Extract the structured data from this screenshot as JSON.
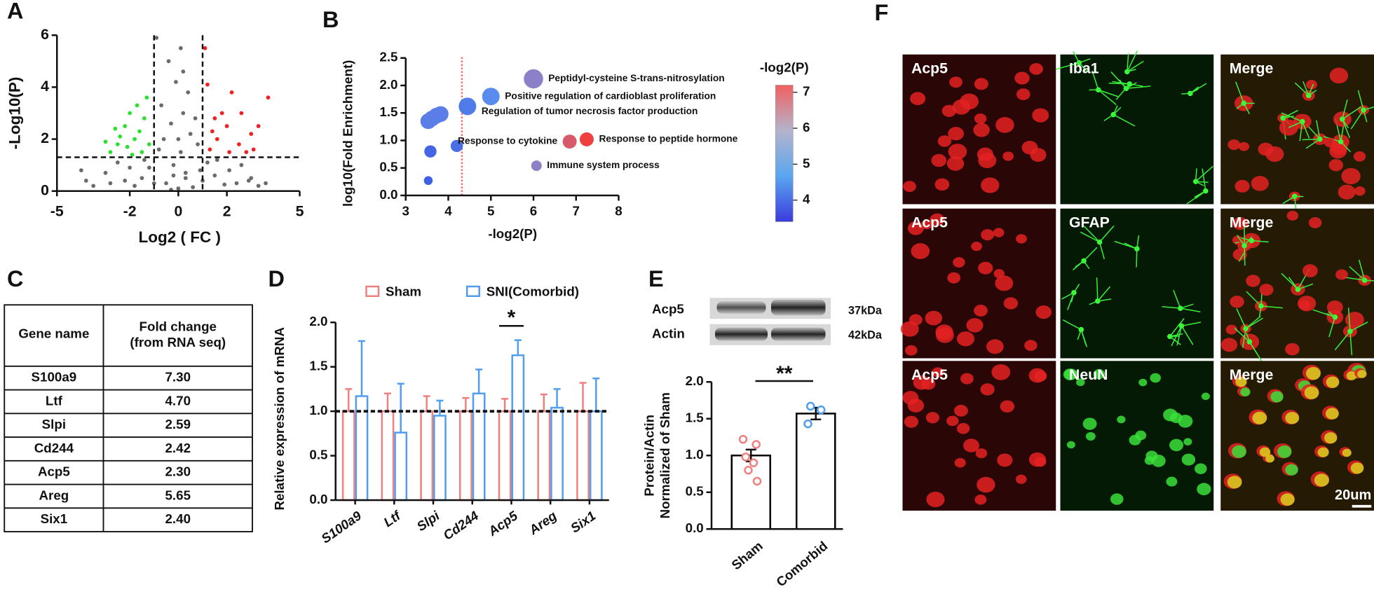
{
  "panel_labels": [
    "A",
    "B",
    "C",
    "D",
    "E",
    "F"
  ],
  "chart_data": [
    {
      "type": "scatter",
      "xlabel": "Log2 ( FC )",
      "ylabel": "-Log10(P)",
      "xlim": [
        -5,
        5
      ],
      "ylim": [
        0,
        6
      ],
      "xticks": [
        -5,
        -2,
        0,
        2,
        5
      ],
      "yticks": [
        0,
        2,
        4,
        6
      ],
      "thresholds": {
        "x": [
          -1,
          1
        ],
        "y": 1.3
      },
      "series": [
        {
          "color": "#6b6b6b",
          "x": [
            -0.5,
            0.3,
            -0.2,
            0.1,
            -0.6,
            0.5,
            0.2,
            -0.1,
            0.2,
            0.1,
            -0.9,
            -0.4,
            0.7,
            -0.8,
            0.9,
            -1.5,
            1.5,
            -2.2,
            2.4,
            -3.0,
            3.0,
            -3.5,
            3.3,
            -4.0,
            -2.5,
            2.6,
            -1.2,
            1.2,
            0.0,
            -0.3,
            0.6,
            -1.8,
            1.9,
            -0.7,
            0.4,
            -0.3,
            0.8,
            -1.0,
            1.0,
            0.0,
            -2.8,
            2.9,
            -3.8,
            3.6,
            -1.4,
            1.6,
            -0.2,
            0.3,
            -2.0,
            2.1
          ],
          "y": [
            0.3,
            0.5,
            1.0,
            1.5,
            2.0,
            2.2,
            3.0,
            4.2,
            4.6,
            5.5,
            5.9,
            5.0,
            2.8,
            1.6,
            0.8,
            0.5,
            0.6,
            0.4,
            0.3,
            0.7,
            0.5,
            0.2,
            0.2,
            0.8,
            1.1,
            1.0,
            0.9,
            1.1,
            0.1,
            0.05,
            0.15,
            0.2,
            0.25,
            3.3,
            3.8,
            2.6,
            1.8,
            0.3,
            0.4,
            2.0,
            0.3,
            0.4,
            0.4,
            0.3,
            1.2,
            1.2,
            0.6,
            0.7,
            0.9,
            0.8
          ]
        },
        {
          "color": "#2ee02e",
          "x": [
            -1.5,
            -1.8,
            -2.2,
            -2.5,
            -2.0,
            -1.3,
            -1.6,
            -2.8,
            -3.0,
            -1.2,
            -1.9,
            -2.4,
            -1.4,
            -1.7,
            -2.1,
            -2.6
          ],
          "y": [
            1.5,
            2.0,
            2.5,
            1.8,
            3.0,
            3.6,
            2.3,
            1.5,
            1.9,
            1.8,
            1.4,
            2.1,
            2.8,
            3.3,
            1.7,
            2.4
          ]
        },
        {
          "color": "#ee2222",
          "x": [
            1.3,
            1.6,
            2.0,
            2.5,
            1.8,
            1.2,
            2.2,
            3.0,
            3.7,
            3.3,
            2.8,
            1.5,
            2.1,
            1.1,
            2.6,
            1.4,
            3.1
          ],
          "y": [
            1.6,
            2.0,
            2.5,
            1.8,
            3.0,
            4.1,
            3.8,
            2.2,
            3.6,
            2.5,
            1.5,
            2.8,
            1.5,
            5.5,
            3.0,
            2.3,
            1.6
          ]
        }
      ]
    },
    {
      "type": "bubble",
      "xlabel": "-log2(P)",
      "ylabel": "log10(Fold Enrichment)",
      "xlim": [
        3,
        8
      ],
      "ylim": [
        0,
        2.5
      ],
      "xticks": [
        3,
        4,
        5,
        6,
        7,
        8
      ],
      "yticks": [
        {
          "value": 0,
          "label": "0.0"
        },
        0.5,
        {
          "value": 1,
          "label": "1.0"
        },
        1.5,
        {
          "value": 2,
          "label": "2.0"
        },
        2.5
      ],
      "threshold_x": 4.32,
      "x": [
        6.0,
        5.0,
        4.45,
        4.2,
        6.85,
        7.25,
        6.07,
        3.53,
        3.62,
        3.72,
        3.82,
        3.58,
        3.53
      ],
      "y": [
        2.12,
        1.8,
        1.62,
        0.9,
        0.98,
        1.02,
        0.54,
        1.35,
        1.4,
        1.45,
        1.48,
        0.8,
        0.27
      ],
      "size": [
        11,
        10,
        10,
        7,
        8,
        8,
        6,
        9,
        9,
        9,
        9,
        7,
        5
      ],
      "colors": [
        "#8c80c8",
        "#5a8cf0",
        "#4f7ce8",
        "#4a6ee6",
        "#d75a6a",
        "#ef4040",
        "#9080c8",
        "#5b7de8",
        "#5b7de8",
        "#5b7de8",
        "#5b7de8",
        "#4466e6",
        "#3f5fe6"
      ],
      "labels": [
        "Peptidyl-cysteine S-trans-nitrosylation",
        "Positive regulation of cardioblast proliferation",
        "Regulation of tumor necrosis factor production",
        null,
        "Response to cytokine",
        "Response to peptide hormone",
        "Immune system process",
        null,
        null,
        null,
        null,
        null,
        null
      ],
      "colorbar": {
        "title": "-log2(P)",
        "range": [
          3.4,
          7.2
        ],
        "ticks": [
          4,
          5,
          6,
          7
        ],
        "colors": [
          "#3b3bdd",
          "#5aa6f0",
          "#b4b4cc",
          "#f06060"
        ]
      }
    },
    {
      "type": "grouped_bar",
      "ylabel": "Relative expression of mRNA",
      "categories": [
        "S100a9",
        "Ltf",
        "Slpi",
        "Cd244",
        "Acp5",
        "Areg",
        "Six1"
      ],
      "ylim": [
        0,
        2
      ],
      "yticks": [
        {
          "value": 0,
          "label": "0.0"
        },
        0.5,
        {
          "value": 1,
          "label": "1.0"
        },
        1.5,
        {
          "value": 2,
          "label": "2.0"
        }
      ],
      "reference_line": 1,
      "series": [
        {
          "name": "Sham",
          "color": "#f08080",
          "values": [
            1,
            1,
            1,
            1,
            1,
            1,
            1
          ],
          "errors": [
            0.25,
            0.2,
            0.17,
            0.15,
            0.14,
            0.19,
            0.32
          ]
        },
        {
          "name": "SNI(Comorbid)",
          "color": "#4f9ef0",
          "values": [
            1.17,
            0.76,
            0.95,
            1.2,
            1.63,
            1.04,
            1.0
          ],
          "errors": [
            0.62,
            0.55,
            0.17,
            0.27,
            0.17,
            0.21,
            0.37
          ]
        }
      ],
      "annotations": [
        {
          "text": "*",
          "category": "Acp5"
        }
      ]
    },
    {
      "type": "bar_dots",
      "ylabel": [
        "Protein/Actin",
        "Normalized of Sham"
      ],
      "categories": [
        "Sham",
        "Comorbid"
      ],
      "values": [
        1.0,
        1.57
      ],
      "errors": [
        0.08,
        0.08
      ],
      "points": [
        [
          0.98,
          1.15,
          1.22,
          0.9,
          0.8,
          0.65
        ],
        [
          1.67,
          1.62,
          1.43
        ]
      ],
      "point_colors": [
        "#f08080",
        "#4f9ef0"
      ],
      "color": "#000000",
      "ylim": [
        0,
        2
      ],
      "yticks": [
        {
          "value": 0,
          "label": "0.0"
        },
        0.5,
        {
          "value": 1,
          "label": "1.0"
        },
        1.5,
        {
          "value": 2,
          "label": "2.0"
        }
      ],
      "annotation": "**"
    }
  ],
  "table": {
    "header": {
      "gene": "Gene name",
      "fold": [
        "Fold change",
        "(from RNA seq)"
      ]
    },
    "rows": [
      [
        "S100a9",
        "7.30"
      ],
      [
        "Ltf",
        "4.70"
      ],
      [
        "Slpi",
        "2.59"
      ],
      [
        "Cd244",
        "2.42"
      ],
      [
        "Acp5",
        "2.30"
      ],
      [
        "Areg",
        "5.65"
      ],
      [
        "Six1",
        "2.40"
      ]
    ]
  },
  "blot": {
    "proteins": [
      "Acp5",
      "Actin"
    ],
    "sizes": [
      "37kDa",
      "42kDa"
    ]
  },
  "micrographs": {
    "rows": [
      [
        "Acp5",
        "Iba1",
        "Merge"
      ],
      [
        "Acp5",
        "GFAP",
        "Merge"
      ],
      [
        "Acp5",
        "NeuN",
        "Merge"
      ]
    ],
    "scale_bar": "20um"
  }
}
